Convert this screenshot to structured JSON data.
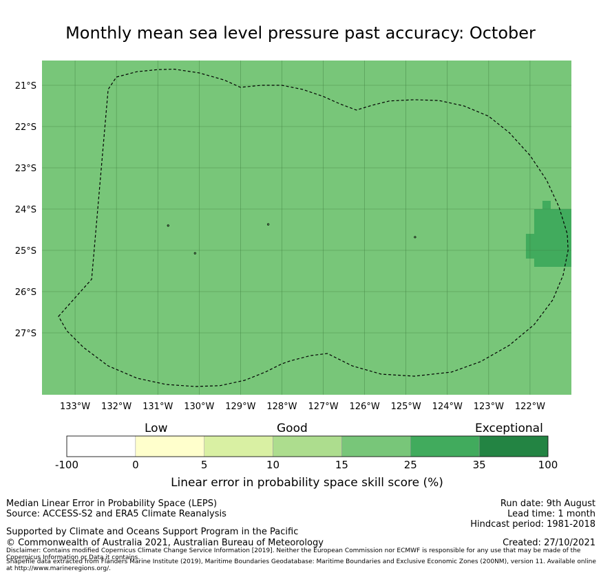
{
  "title": "Monthly mean sea level pressure past accuracy: October",
  "map": {
    "lon_range": [
      -133.8,
      -121.0
    ],
    "lat_range": [
      -28.5,
      -20.4
    ],
    "lon_ticks": [
      {
        "value": -133,
        "label": "133°W"
      },
      {
        "value": -132,
        "label": "132°W"
      },
      {
        "value": -131,
        "label": "131°W"
      },
      {
        "value": -130,
        "label": "130°W"
      },
      {
        "value": -129,
        "label": "129°W"
      },
      {
        "value": -128,
        "label": "128°W"
      },
      {
        "value": -127,
        "label": "127°W"
      },
      {
        "value": -126,
        "label": "126°W"
      },
      {
        "value": -125,
        "label": "125°W"
      },
      {
        "value": -124,
        "label": "124°W"
      },
      {
        "value": -123,
        "label": "123°W"
      },
      {
        "value": -122,
        "label": "122°W"
      }
    ],
    "lat_ticks": [
      {
        "value": -21,
        "label": "21°S"
      },
      {
        "value": -22,
        "label": "22°S"
      },
      {
        "value": -23,
        "label": "23°S"
      },
      {
        "value": -24,
        "label": "24°S"
      },
      {
        "value": -25,
        "label": "25°S"
      },
      {
        "value": -26,
        "label": "26°S"
      },
      {
        "value": -27,
        "label": "27°S"
      }
    ],
    "background_color": "#78c679",
    "high_skill_color": "#41ab5d",
    "high_skill_cells": [
      {
        "lon": [
          -121.7,
          -121.5
        ],
        "lat": [
          -23.8,
          -24.0
        ]
      },
      {
        "lon": [
          -121.9,
          -121.0
        ],
        "lat": [
          -24.0,
          -24.2
        ]
      },
      {
        "lon": [
          -121.9,
          -121.0
        ],
        "lat": [
          -24.2,
          -24.6
        ]
      },
      {
        "lon": [
          -122.1,
          -121.0
        ],
        "lat": [
          -24.6,
          -25.2
        ]
      },
      {
        "lon": [
          -121.9,
          -121.0
        ],
        "lat": [
          -25.2,
          -25.4
        ]
      }
    ],
    "eez_boundary": [
      [
        -133.4,
        -26.6
      ],
      [
        -132.6,
        -25.7
      ],
      [
        -132.2,
        -21.1
      ],
      [
        -132.0,
        -20.8
      ],
      [
        -131.5,
        -20.67
      ],
      [
        -131.0,
        -20.62
      ],
      [
        -130.6,
        -20.61
      ],
      [
        -130.0,
        -20.7
      ],
      [
        -129.4,
        -20.87
      ],
      [
        -129.0,
        -21.05
      ],
      [
        -128.5,
        -21.0
      ],
      [
        -128.0,
        -21.0
      ],
      [
        -127.5,
        -21.1
      ],
      [
        -127.0,
        -21.27
      ],
      [
        -126.6,
        -21.45
      ],
      [
        -126.2,
        -21.6
      ],
      [
        -125.8,
        -21.48
      ],
      [
        -125.4,
        -21.38
      ],
      [
        -124.8,
        -21.35
      ],
      [
        -124.2,
        -21.37
      ],
      [
        -123.6,
        -21.5
      ],
      [
        -123.0,
        -21.75
      ],
      [
        -122.5,
        -22.15
      ],
      [
        -122.0,
        -22.7
      ],
      [
        -121.6,
        -23.3
      ],
      [
        -121.3,
        -23.95
      ],
      [
        -121.1,
        -24.6
      ],
      [
        -121.08,
        -25.0
      ],
      [
        -121.2,
        -25.6
      ],
      [
        -121.45,
        -26.2
      ],
      [
        -121.9,
        -26.8
      ],
      [
        -122.5,
        -27.3
      ],
      [
        -123.2,
        -27.7
      ],
      [
        -123.9,
        -27.95
      ],
      [
        -124.8,
        -28.05
      ],
      [
        -125.6,
        -28.0
      ],
      [
        -126.3,
        -27.8
      ],
      [
        -126.9,
        -27.5
      ],
      [
        -127.3,
        -27.55
      ],
      [
        -127.8,
        -27.68
      ],
      [
        -128.0,
        -27.75
      ],
      [
        -128.4,
        -27.95
      ],
      [
        -128.9,
        -28.15
      ],
      [
        -129.5,
        -28.28
      ],
      [
        -130.1,
        -28.3
      ],
      [
        -130.8,
        -28.25
      ],
      [
        -131.5,
        -28.1
      ],
      [
        -132.2,
        -27.8
      ],
      [
        -132.8,
        -27.35
      ],
      [
        -133.2,
        -26.95
      ],
      [
        -133.4,
        -26.6
      ]
    ],
    "islands": [
      {
        "lon": -130.75,
        "lat": -24.4
      },
      {
        "lon": -128.33,
        "lat": -24.37
      },
      {
        "lon": -130.1,
        "lat": -25.07
      },
      {
        "lon": -124.78,
        "lat": -24.68
      }
    ]
  },
  "colorbar": {
    "title": "Linear error in probability space skill score (%)",
    "category_labels": [
      "Low",
      "Good",
      "Exceptional"
    ],
    "bins": [
      {
        "from": -100,
        "to": 0,
        "color": "#ffffff"
      },
      {
        "from": 0,
        "to": 5,
        "color": "#ffffcc"
      },
      {
        "from": 5,
        "to": 10,
        "color": "#d9f0a3"
      },
      {
        "from": 10,
        "to": 15,
        "color": "#addd8e"
      },
      {
        "from": 15,
        "to": 25,
        "color": "#78c679"
      },
      {
        "from": 25,
        "to": 35,
        "color": "#41ab5d"
      },
      {
        "from": 35,
        "to": 100,
        "color": "#238443"
      }
    ],
    "tick_labels": [
      "-100",
      "0",
      "5",
      "10",
      "15",
      "25",
      "35",
      "100"
    ]
  },
  "info": {
    "method": "Median Linear Error in Probability Space (LEPS)",
    "source": "Source: ACCESS-S2 and ERA5 Climate Reanalysis",
    "support": "Supported by Climate and Oceans Support Program in the Pacific",
    "copyright": "© Commonwealth of Australia 2021, Australian Bureau of Meteorology",
    "disclaimer": "Disclaimer: Contains modified Copernicus Climate Change Service Information [2019]. Neither the European Commission nor ECMWF is responsible for any use that may be made of the Copernicus Information or Data it contains.",
    "shapefile": "Shapefile data extracted from Flanders Marine Institute (2019), Maritime Boundaries Geodatabase: Maritime Boundaries and Exclusive Economic Zones (200NM), version 11. Available online at http://www.marineregions.org/.",
    "run_date": "Run date: 9th August",
    "lead_time": "Lead time: 1 month",
    "hindcast": "Hindcast period: 1981-2018",
    "created": "Created: 27/10/2021"
  }
}
